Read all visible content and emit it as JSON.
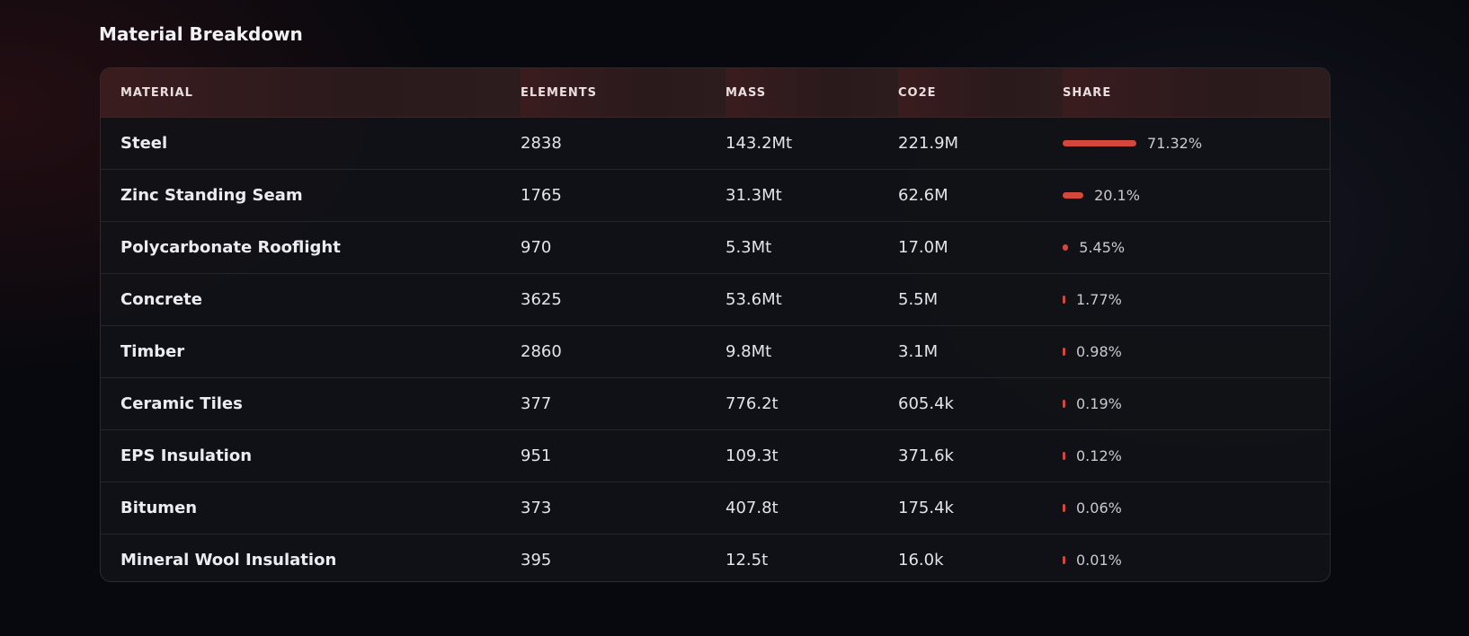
{
  "header": {
    "title": "Material Breakdown"
  },
  "table": {
    "columns": [
      "MATERIAL",
      "ELEMENTS",
      "MASS",
      "CO2E",
      "SHARE"
    ],
    "rows": [
      [
        "Steel",
        2838,
        "143.2Mt",
        "221.9M",
        {
          "value": 71.32,
          "label": "71.32%"
        }
      ],
      [
        "Zinc Standing Seam",
        1765,
        "31.3Mt",
        "62.6M",
        {
          "value": 20.1,
          "label": "20.1%"
        }
      ],
      [
        "Polycarbonate Rooflight",
        970,
        "5.3Mt",
        "17.0M",
        {
          "value": 5.45,
          "label": "5.45%"
        }
      ],
      [
        "Concrete",
        3625,
        "53.6Mt",
        "5.5M",
        {
          "value": 1.77,
          "label": "1.77%"
        }
      ],
      [
        "Timber",
        2860,
        "9.8Mt",
        "3.1M",
        {
          "value": 0.98,
          "label": "0.98%"
        }
      ],
      [
        "Ceramic Tiles",
        377,
        "776.2t",
        "605.4k",
        {
          "value": 0.19,
          "label": "0.19%"
        }
      ],
      [
        "EPS Insulation",
        951,
        "109.3t",
        "371.6k",
        {
          "value": 0.12,
          "label": "0.12%"
        }
      ],
      [
        "Bitumen",
        373,
        "407.8t",
        "175.4k",
        {
          "value": 0.06,
          "label": "0.06%"
        }
      ],
      [
        "Mineral Wool Insulation",
        395,
        "12.5t",
        "16.0k",
        {
          "value": 0.01,
          "label": "0.01%"
        }
      ]
    ]
  }
}
